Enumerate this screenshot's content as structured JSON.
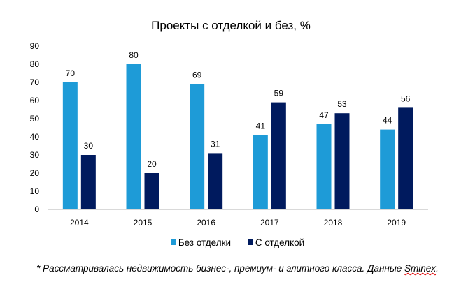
{
  "chart_data": {
    "type": "bar",
    "title": "Проекты с отделкой и без, %",
    "categories": [
      "2014",
      "2015",
      "2016",
      "2017",
      "2018",
      "2019"
    ],
    "series": [
      {
        "name": "Без отделки",
        "color": "#1E9BD7",
        "values": [
          70,
          80,
          69,
          41,
          47,
          44
        ]
      },
      {
        "name": "С отделкой",
        "color": "#001A5E",
        "values": [
          30,
          20,
          31,
          59,
          53,
          56
        ]
      }
    ],
    "ylim": [
      0,
      90
    ],
    "yticks": [
      "0",
      "10",
      "20",
      "30",
      "40",
      "50",
      "60",
      "70",
      "80",
      "90"
    ],
    "xlabel": "",
    "ylabel": "",
    "legend": "bottom",
    "grid": false
  },
  "footnote": {
    "text": "* Рассматривалась недвижимость бизнес-, премиум- и элитного класса. Данные ",
    "source": "Sminex",
    "end": "."
  }
}
